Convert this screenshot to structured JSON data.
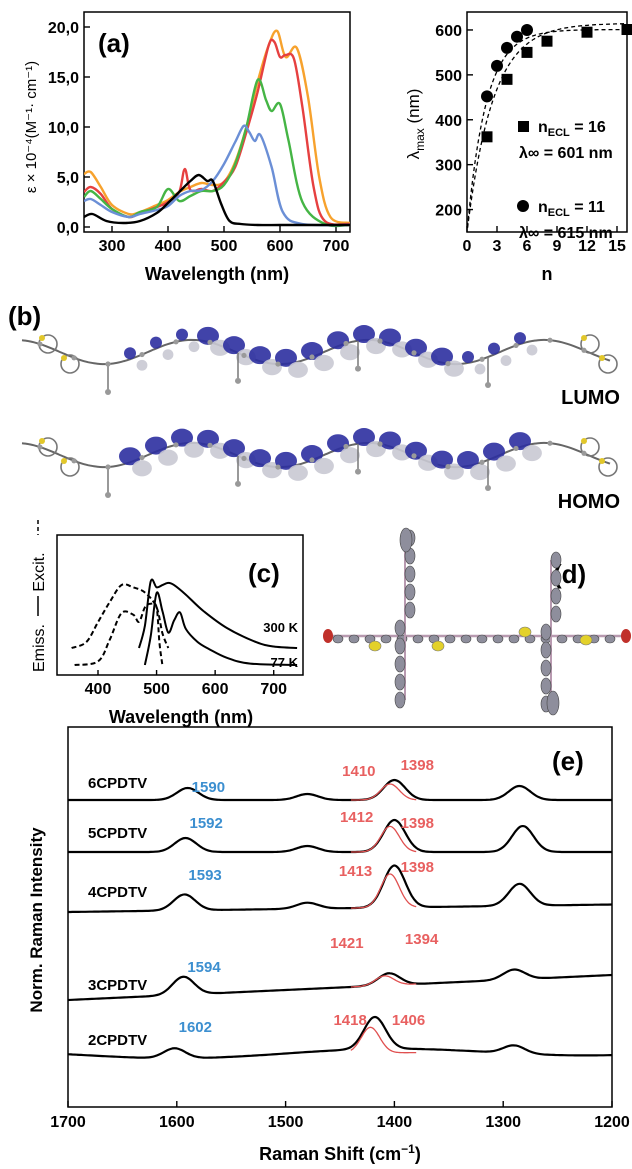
{
  "chart_data": [
    {
      "panel": "(a)",
      "type": "line",
      "xlabel": "Wavelength (nm)",
      "ylabel": "ε × 10⁻⁴(M⁻¹· cm⁻¹)",
      "xlim": [
        250,
        725
      ],
      "ylim": [
        -0.5,
        21.5
      ],
      "xticks": [
        "300",
        "400",
        "500",
        "600",
        "700"
      ],
      "yticks": [
        "0,0",
        "5,0",
        "10,0",
        "15,0",
        "20,0"
      ],
      "series": [
        {
          "color": "#000000",
          "x": [
            250,
            265,
            290,
            320,
            350,
            380,
            400,
            420,
            440,
            455,
            470,
            480,
            495,
            510,
            530,
            560,
            600,
            650,
            725
          ],
          "y": [
            1.0,
            1.3,
            0.6,
            0.4,
            0.6,
            1.4,
            2.4,
            3.5,
            4.6,
            5.2,
            4.6,
            4.6,
            2.3,
            0.6,
            0.3,
            0.2,
            0.2,
            0.2,
            0.2
          ]
        },
        {
          "color": "#6b8fd6",
          "x": [
            250,
            262,
            280,
            300,
            330,
            350,
            380,
            400,
            420,
            440,
            460,
            480,
            500,
            520,
            535,
            545,
            555,
            565,
            585,
            605,
            640,
            725
          ],
          "y": [
            2.6,
            2.8,
            2.2,
            1.5,
            1.0,
            1.3,
            1.7,
            2.1,
            3.1,
            3.6,
            3.7,
            4.6,
            6.3,
            8.5,
            10.1,
            9.5,
            8.6,
            9.2,
            6.0,
            1.5,
            0.3,
            0.2
          ]
        },
        {
          "color": "#45b545",
          "x": [
            250,
            262,
            280,
            300,
            330,
            350,
            380,
            400,
            420,
            440,
            460,
            480,
            500,
            520,
            540,
            560,
            575,
            585,
            600,
            615,
            640,
            680,
            725
          ],
          "y": [
            3.0,
            3.6,
            2.8,
            1.8,
            1.0,
            1.5,
            2.0,
            3.8,
            2.6,
            3.1,
            3.6,
            3.6,
            4.2,
            6.3,
            10.0,
            14.7,
            12.7,
            11.6,
            12.3,
            8.7,
            2.5,
            0.3,
            0.2
          ]
        },
        {
          "color": "#e64040",
          "x": [
            250,
            262,
            280,
            300,
            330,
            350,
            380,
            400,
            420,
            430,
            440,
            460,
            480,
            500,
            520,
            540,
            560,
            580,
            590,
            600,
            610,
            625,
            640,
            660,
            680,
            725
          ],
          "y": [
            3.5,
            4.0,
            3.3,
            1.8,
            1.0,
            1.4,
            2.0,
            2.5,
            3.5,
            5.8,
            3.7,
            3.8,
            3.6,
            4.5,
            6.0,
            9.5,
            13.5,
            18.2,
            18.5,
            17.0,
            17.2,
            16.8,
            12.0,
            4.0,
            0.6,
            0.3
          ]
        },
        {
          "color": "#f7a22d",
          "x": [
            250,
            262,
            280,
            300,
            330,
            350,
            380,
            400,
            420,
            440,
            460,
            480,
            500,
            520,
            540,
            560,
            580,
            595,
            610,
            630,
            650,
            670,
            690,
            725
          ],
          "y": [
            5.3,
            5.5,
            4.0,
            2.2,
            1.3,
            1.5,
            2.2,
            2.7,
            3.5,
            4.0,
            4.4,
            4.2,
            4.5,
            6.5,
            10.0,
            14.5,
            18.2,
            19.6,
            17.0,
            17.9,
            13.0,
            5.0,
            1.0,
            0.4
          ]
        }
      ]
    },
    {
      "panel": "(a) inset",
      "type": "scatter",
      "xlabel": "n",
      "ylabel": "λmax (nm)",
      "xlim": [
        0,
        16
      ],
      "ylim": [
        150,
        640
      ],
      "xticks": [
        "0",
        "3",
        "6",
        "9",
        "12",
        "15"
      ],
      "yticks": [
        "200",
        "300",
        "400",
        "500",
        "600"
      ],
      "series": [
        {
          "marker": "square",
          "x": [
            2,
            4,
            6,
            8,
            12,
            16
          ],
          "y": [
            362,
            490,
            550,
            575,
            595,
            601
          ]
        },
        {
          "marker": "circle",
          "x": [
            2,
            3,
            4,
            5,
            6
          ],
          "y": [
            452,
            520,
            560,
            585,
            600
          ]
        }
      ],
      "legend": [
        {
          "marker": "square",
          "line1": "n",
          "sub1": "ECL",
          "tail1": " = 16",
          "line2": "λ∞ = 601 nm"
        },
        {
          "marker": "circle",
          "line1": "n",
          "sub1": "ECL",
          "tail1": " = 11",
          "line2": "λ∞ = 615 nm"
        }
      ]
    },
    {
      "panel": "(c)",
      "type": "line",
      "xlabel": "Wavelength (nm)",
      "ylabel_left_top": "Excit.",
      "ylabel_left_bottom": "Emiss.",
      "xlim": [
        330,
        750
      ],
      "xticks": [
        "400",
        "500",
        "600",
        "700"
      ],
      "temperatures": [
        "300 K",
        "77 K"
      ],
      "series": [
        {
          "name": "excitation 300 K",
          "style": "dashed",
          "x": [
            355,
            380,
            400,
            420,
            440,
            460,
            480,
            500,
            510,
            520
          ],
          "y": [
            0.0,
            0.08,
            0.35,
            0.62,
            0.85,
            0.82,
            0.75,
            0.55,
            0.2,
            0.0
          ]
        },
        {
          "name": "emission 300 K",
          "style": "solid",
          "x": [
            470,
            480,
            490,
            500,
            510,
            520,
            530,
            550,
            580,
            620,
            670,
            700,
            740
          ],
          "y": [
            0.0,
            0.3,
            0.9,
            0.82,
            0.85,
            0.88,
            0.85,
            0.72,
            0.5,
            0.27,
            0.08,
            0.02,
            0.0
          ]
        },
        {
          "name": "excitation 77 K",
          "style": "dashed",
          "x": [
            360,
            400,
            420,
            440,
            460,
            470,
            480,
            490,
            500,
            505,
            510
          ],
          "y": [
            0.0,
            0.05,
            0.35,
            0.72,
            0.7,
            0.6,
            0.8,
            0.85,
            0.8,
            0.3,
            0.0
          ]
        },
        {
          "name": "emission 77 K",
          "style": "solid",
          "x": [
            480,
            490,
            500,
            510,
            520,
            530,
            540,
            550,
            570,
            590,
            620,
            660,
            740
          ],
          "y": [
            0.0,
            0.4,
            1.0,
            0.75,
            0.45,
            0.62,
            0.73,
            0.5,
            0.32,
            0.22,
            0.1,
            0.02,
            0.0
          ]
        }
      ]
    },
    {
      "panel": "(e)",
      "type": "line",
      "xlabel": "Raman Shift (cm⁻¹)",
      "ylabel": "Norm. Raman Intensity",
      "xlim": [
        1700,
        1200
      ],
      "xticks": [
        "1700",
        "1600",
        "1500",
        "1400",
        "1300",
        "1200"
      ],
      "series": [
        {
          "name": "6CPDTV",
          "peaks": [
            {
              "label": "1590",
              "color": "#3c8fd0"
            },
            {
              "label": "1410",
              "color": "#e86060"
            },
            {
              "label": "1398",
              "color": "#e86060"
            }
          ]
        },
        {
          "name": "5CPDTV",
          "peaks": [
            {
              "label": "1592",
              "color": "#3c8fd0"
            },
            {
              "label": "1412",
              "color": "#e86060"
            },
            {
              "label": "1398",
              "color": "#e86060"
            }
          ]
        },
        {
          "name": "4CPDTV",
          "peaks": [
            {
              "label": "1593",
              "color": "#3c8fd0"
            },
            {
              "label": "1413",
              "color": "#e86060"
            },
            {
              "label": "1398",
              "color": "#e86060"
            }
          ]
        },
        {
          "name": "3CPDTV",
          "peaks": [
            {
              "label": "1594",
              "color": "#3c8fd0"
            },
            {
              "label": "1421",
              "color": "#e86060"
            },
            {
              "label": "1394",
              "color": "#e86060"
            }
          ]
        },
        {
          "name": "2CPDTV",
          "peaks": [
            {
              "label": "1602",
              "color": "#3c8fd0"
            },
            {
              "label": "1418",
              "color": "#e86060"
            },
            {
              "label": "1406",
              "color": "#e86060"
            }
          ]
        }
      ]
    }
  ],
  "labels": {
    "panel_a": "(a)",
    "panel_b": "(b)",
    "panel_c": "(c)",
    "panel_d": "(d)",
    "panel_e": "(e)",
    "lumo": "LUMO",
    "homo": "HOMO"
  }
}
